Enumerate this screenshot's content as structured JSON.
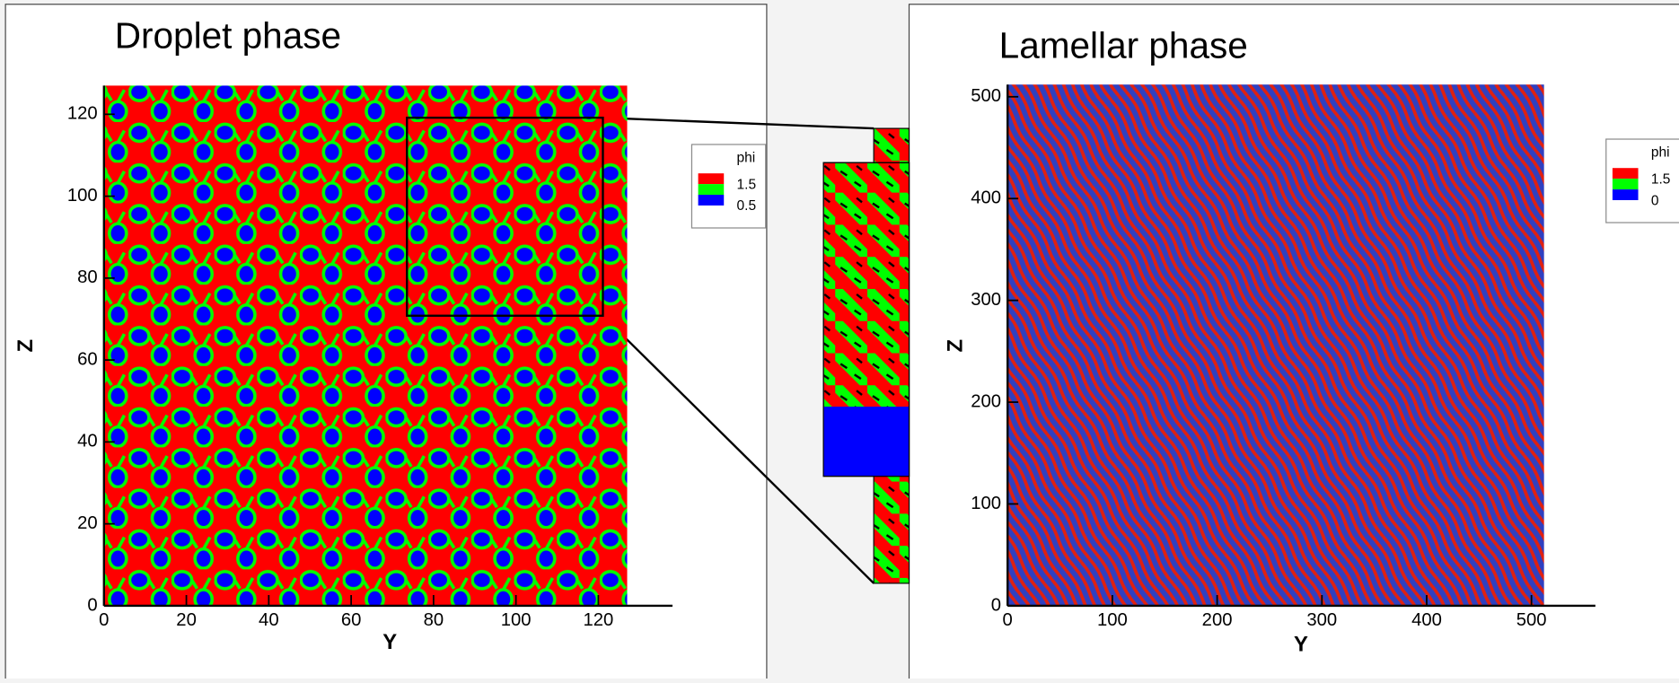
{
  "chart_data": [
    {
      "type": "heatmap",
      "title": "Droplet phase",
      "xlabel": "Y",
      "ylabel": "Z",
      "xlim": [
        0,
        138
      ],
      "ylim": [
        0,
        127
      ],
      "xticks": [
        0,
        20,
        40,
        60,
        80,
        100,
        120
      ],
      "yticks": [
        0,
        20,
        40,
        60,
        80,
        100,
        120
      ],
      "legend": {
        "title": "phi",
        "levels": [
          1.5,
          0.5
        ],
        "colors": [
          "#ff0000",
          "#00ff00",
          "#0000ff"
        ]
      }
    },
    {
      "type": "heatmap",
      "title": "Lamellar phase",
      "xlabel": "Y",
      "ylabel": "Z",
      "xlim": [
        0,
        561
      ],
      "ylim": [
        0,
        512
      ],
      "xticks": [
        0,
        100,
        200,
        300,
        400,
        500
      ],
      "yticks": [
        0,
        100,
        200,
        300,
        400,
        500
      ],
      "legend": {
        "title": "phi",
        "levels": [
          1.5,
          0
        ],
        "colors": [
          "#ff0000",
          "#00ff00",
          "#0000ff"
        ]
      }
    }
  ]
}
